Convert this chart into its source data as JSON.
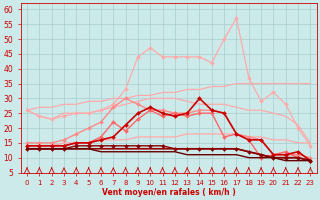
{
  "x": [
    0,
    1,
    2,
    3,
    4,
    5,
    6,
    7,
    8,
    9,
    10,
    11,
    12,
    13,
    14,
    15,
    16,
    17,
    18,
    19,
    20,
    21,
    22,
    23
  ],
  "background_color": "#cceaea",
  "grid_color": "#aacccc",
  "xlabel": "Vent moyen/en rafales ( km/h )",
  "ylim": [
    5,
    62
  ],
  "xlim": [
    -0.5,
    23.5
  ],
  "yticks": [
    5,
    10,
    15,
    20,
    25,
    30,
    35,
    40,
    45,
    50,
    55,
    60
  ],
  "lines": [
    {
      "y": [
        26,
        27,
        27,
        28,
        28,
        29,
        29,
        30,
        30,
        31,
        31,
        32,
        32,
        33,
        33,
        34,
        34,
        35,
        35,
        35,
        35,
        35,
        35,
        35
      ],
      "color": "#ffaaaa",
      "lw": 0.9,
      "marker": null
    },
    {
      "y": [
        14,
        14,
        14,
        15,
        15,
        15,
        16,
        16,
        16,
        17,
        17,
        17,
        17,
        18,
        18,
        18,
        18,
        18,
        17,
        17,
        16,
        16,
        15,
        15
      ],
      "color": "#ffaaaa",
      "lw": 0.9,
      "marker": null
    },
    {
      "y": [
        26,
        24,
        23,
        24,
        25,
        25,
        26,
        28,
        33,
        44,
        47,
        44,
        44,
        44,
        44,
        42,
        50,
        57,
        37,
        29,
        32,
        28,
        20,
        14
      ],
      "color": "#ffaaaa",
      "lw": 0.9,
      "marker": "D",
      "ms": 2.0
    },
    {
      "y": [
        26,
        24,
        23,
        25,
        25,
        25,
        26,
        27,
        28,
        29,
        30,
        30,
        30,
        29,
        28,
        28,
        28,
        27,
        26,
        26,
        25,
        24,
        21,
        15
      ],
      "color": "#ffaaaa",
      "lw": 0.9,
      "marker": null
    },
    {
      "y": [
        15,
        15,
        15,
        16,
        18,
        20,
        22,
        27,
        30,
        28,
        26,
        26,
        25,
        25,
        26,
        26,
        25,
        18,
        17,
        16,
        11,
        11,
        11,
        10
      ],
      "color": "#ff8888",
      "lw": 1.0,
      "marker": "D",
      "ms": 2.0
    },
    {
      "y": [
        14,
        14,
        14,
        14,
        15,
        15,
        17,
        22,
        19,
        23,
        26,
        24,
        25,
        24,
        25,
        25,
        17,
        18,
        16,
        10,
        11,
        12,
        10,
        9
      ],
      "color": "#ff6666",
      "lw": 1.0,
      "marker": "D",
      "ms": 2.0
    },
    {
      "y": [
        14,
        14,
        14,
        14,
        15,
        15,
        16,
        17,
        21,
        25,
        27,
        25,
        24,
        25,
        30,
        26,
        25,
        18,
        16,
        16,
        11,
        11,
        12,
        9
      ],
      "color": "#cc0000",
      "lw": 1.2,
      "marker": "D",
      "ms": 2.0
    },
    {
      "y": [
        13,
        13,
        13,
        13,
        13,
        13,
        13,
        13,
        13,
        13,
        13,
        13,
        13,
        13,
        13,
        13,
        13,
        13,
        12,
        11,
        10,
        10,
        10,
        9
      ],
      "color": "#990000",
      "lw": 1.2,
      "marker": null
    },
    {
      "y": [
        13,
        13,
        13,
        13,
        14,
        14,
        14,
        14,
        14,
        14,
        14,
        14,
        13,
        13,
        13,
        13,
        13,
        13,
        12,
        11,
        10,
        10,
        10,
        9
      ],
      "color": "#880000",
      "lw": 1.0,
      "marker": "D",
      "ms": 2.0
    },
    {
      "y": [
        13,
        13,
        13,
        13,
        13,
        13,
        12,
        12,
        12,
        12,
        12,
        12,
        12,
        11,
        11,
        11,
        11,
        11,
        10,
        10,
        10,
        9,
        9,
        9
      ],
      "color": "#660000",
      "lw": 1.0,
      "marker": null
    }
  ]
}
